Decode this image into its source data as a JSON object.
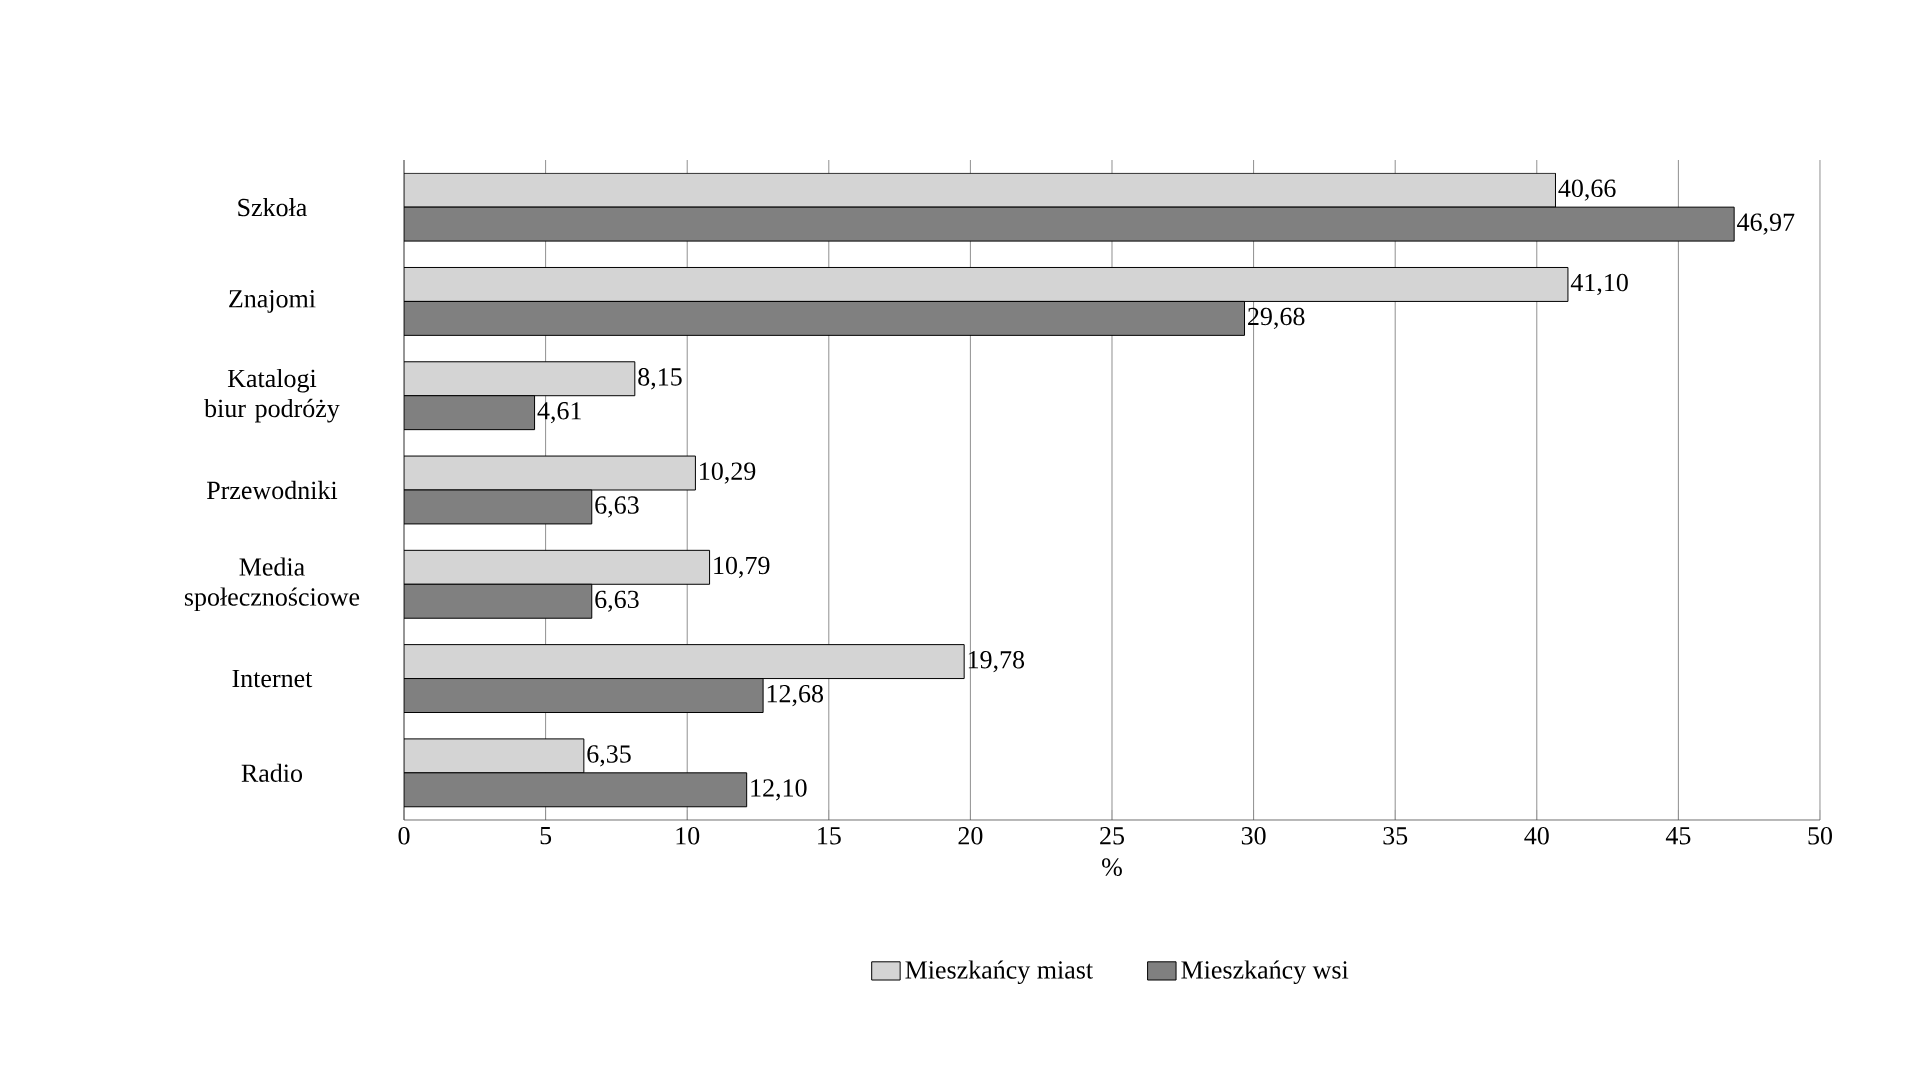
{
  "chart_data": {
    "type": "bar",
    "orientation": "horizontal",
    "categories": [
      "Szkoła",
      "Znajomi",
      "Katalogi biur podróży",
      "Przewodniki",
      "Media społecznościowe",
      "Internet",
      "Radio"
    ],
    "series": [
      {
        "name": "Mieszkańcy miast",
        "color": "#d4d4d4",
        "values": [
          40.66,
          41.1,
          8.15,
          10.29,
          10.79,
          19.78,
          6.35
        ],
        "value_labels": [
          "40,66",
          "41,10",
          "8,15",
          "10,29",
          "10,79",
          "19,78",
          "6,35"
        ]
      },
      {
        "name": "Mieszkańcy wsi",
        "color": "#808080",
        "values": [
          46.97,
          29.68,
          4.61,
          6.63,
          6.63,
          12.68,
          12.1
        ],
        "value_labels": [
          "46,97",
          "29,68",
          "4,61",
          "6,63",
          "6,63",
          "12,68",
          "12,10"
        ]
      }
    ],
    "xlabel": "%",
    "xlim": [
      0,
      50
    ],
    "xticks": [
      0,
      5,
      10,
      15,
      20,
      25,
      30,
      35,
      40,
      45,
      50
    ],
    "grid": "x",
    "legend": "bottom"
  }
}
